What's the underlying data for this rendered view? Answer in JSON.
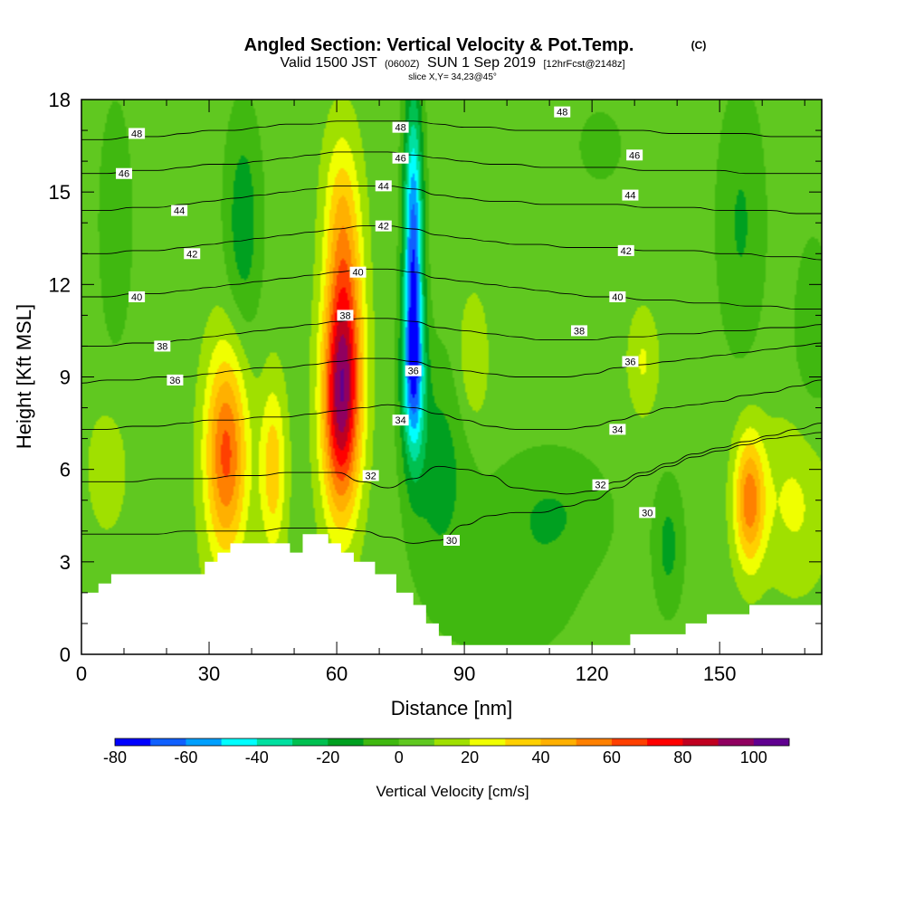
{
  "chart_data": {
    "type": "heatmap",
    "title": "Angled Section: Vertical Velocity & Pot.Temp.",
    "title_suffix": "(C)",
    "subtitle": {
      "part1": "Valid 1500 JST",
      "part2": "(0600Z)",
      "part3": "SUN 1 Sep 2019",
      "part4": "[12hrFcst@2148z]"
    },
    "slice_label": "slice X,Y= 34,23@45°",
    "xlabel": "Distance [nm]",
    "ylabel": "Height [Kft MSL]",
    "xlim": [
      0,
      174
    ],
    "ylim": [
      0,
      18
    ],
    "x_ticks": [
      0,
      30,
      60,
      90,
      120,
      150
    ],
    "y_ticks": [
      0,
      3,
      6,
      9,
      12,
      15,
      18
    ],
    "colorbar": {
      "label": "Vertical Velocity [cm/s]",
      "tick_labels": [
        -80,
        -60,
        -40,
        -20,
        0,
        20,
        40,
        60,
        80,
        100
      ],
      "bounds": [
        -80,
        110
      ],
      "step": 10,
      "colors": [
        "#0000ff",
        "#1060ff",
        "#00a0ff",
        "#00ffff",
        "#00e0a0",
        "#00c050",
        "#00a020",
        "#40b810",
        "#60c820",
        "#a0e000",
        "#f0ff00",
        "#ffd000",
        "#ffb000",
        "#ff8000",
        "#ff4000",
        "#ff0000",
        "#c00020",
        "#900060",
        "#600090"
      ]
    },
    "velocity_field": [
      {
        "x": 6,
        "z": 6.0,
        "value": 15,
        "sx": 3,
        "sz": 1.3
      },
      {
        "x": 34,
        "z": 6.5,
        "value": 58,
        "sx": 3.5,
        "sz": 2.4
      },
      {
        "x": 45,
        "z": 6.0,
        "value": 32,
        "sx": 2.2,
        "sz": 2.0
      },
      {
        "x": 61,
        "z": 8.0,
        "value": 75,
        "sx": 3.2,
        "sz": 2.6
      },
      {
        "x": 62,
        "z": 11.0,
        "value": 35,
        "sx": 3.0,
        "sz": 2.8
      },
      {
        "x": 61,
        "z": 14.5,
        "value": 20,
        "sx": 3.0,
        "sz": 2.0
      },
      {
        "x": 38,
        "z": 14.0,
        "value": -22,
        "sx": 3.0,
        "sz": 2.5
      },
      {
        "x": 8,
        "z": 14.0,
        "value": -12,
        "sx": 3.0,
        "sz": 3.0
      },
      {
        "x": 78,
        "z": 13.0,
        "value": -72,
        "sx": 1.6,
        "sz": 3.5
      },
      {
        "x": 78,
        "z": 9.0,
        "value": -42,
        "sx": 2.0,
        "sz": 1.8
      },
      {
        "x": 84,
        "z": 6.0,
        "value": -20,
        "sx": 5,
        "sz": 2.5
      },
      {
        "x": 110,
        "z": 4.5,
        "value": -16,
        "sx": 10,
        "sz": 1.5
      },
      {
        "x": 100,
        "z": 1.5,
        "value": -12,
        "sx": 10,
        "sz": 1.2
      },
      {
        "x": 92,
        "z": 9.5,
        "value": 16,
        "sx": 2.5,
        "sz": 1.5
      },
      {
        "x": 132,
        "z": 9.5,
        "value": 16,
        "sx": 2.5,
        "sz": 1.2
      },
      {
        "x": 157,
        "z": 5.0,
        "value": 50,
        "sx": 2.5,
        "sz": 1.5
      },
      {
        "x": 168,
        "z": 5.0,
        "value": 18,
        "sx": 6,
        "sz": 2.0
      },
      {
        "x": 155,
        "z": 14.0,
        "value": -16,
        "sx": 4,
        "sz": 3.0
      },
      {
        "x": 172,
        "z": 10.0,
        "value": -10,
        "sx": 4,
        "sz": 3.0
      },
      {
        "x": 122,
        "z": 16.5,
        "value": -6,
        "sx": 8,
        "sz": 1.8
      },
      {
        "x": 138,
        "z": 3.5,
        "value": -18,
        "sx": 2.5,
        "sz": 1.5
      },
      {
        "x": 20,
        "z": 1.5,
        "value": 4,
        "sx": 6,
        "sz": 1.5
      }
    ],
    "terrain": [
      [
        0,
        2.0
      ],
      [
        4,
        2.0
      ],
      [
        4,
        2.3
      ],
      [
        7,
        2.3
      ],
      [
        7,
        2.6
      ],
      [
        29,
        2.6
      ],
      [
        29,
        3.0
      ],
      [
        32,
        3.0
      ],
      [
        32,
        3.3
      ],
      [
        35,
        3.3
      ],
      [
        35,
        3.6
      ],
      [
        49,
        3.6
      ],
      [
        49,
        3.3
      ],
      [
        52,
        3.3
      ],
      [
        52,
        3.9
      ],
      [
        58,
        3.9
      ],
      [
        58,
        3.6
      ],
      [
        61,
        3.6
      ],
      [
        61,
        3.3
      ],
      [
        64,
        3.3
      ],
      [
        64,
        3.0
      ],
      [
        69,
        3.0
      ],
      [
        69,
        2.6
      ],
      [
        74,
        2.6
      ],
      [
        74,
        2.0
      ],
      [
        78,
        2.0
      ],
      [
        78,
        1.6
      ],
      [
        81,
        1.6
      ],
      [
        81,
        1.0
      ],
      [
        84,
        1.0
      ],
      [
        84,
        0.6
      ],
      [
        87,
        0.6
      ],
      [
        87,
        0.3
      ],
      [
        129,
        0.3
      ],
      [
        129,
        0.65
      ],
      [
        142,
        0.65
      ],
      [
        142,
        1.0
      ],
      [
        147,
        1.0
      ],
      [
        147,
        1.3
      ],
      [
        157,
        1.3
      ],
      [
        157,
        1.6
      ],
      [
        174,
        1.6
      ]
    ],
    "theta_levels": [
      {
        "value": 30,
        "z": [
          3.9,
          3.9,
          3.9,
          3.9,
          4.0,
          4.0,
          4.0,
          4.0,
          4.1,
          4.1,
          4.1,
          4.0,
          3.8,
          3.6,
          3.7,
          4.2,
          4.5,
          4.6,
          4.6,
          4.8,
          5.0,
          5.4,
          5.8,
          6.1,
          6.4,
          6.6,
          6.8,
          7.0,
          7.1,
          7.2
        ]
      },
      {
        "value": 32,
        "z": [
          5.6,
          5.6,
          5.6,
          5.7,
          5.7,
          5.7,
          5.8,
          5.8,
          5.9,
          5.9,
          5.9,
          5.6,
          5.4,
          5.7,
          6.1,
          6.0,
          5.8,
          5.4,
          5.3,
          5.2,
          5.3,
          5.6,
          5.9,
          6.2,
          6.5,
          6.7,
          6.9,
          7.1,
          7.3,
          7.5
        ]
      },
      {
        "value": 34,
        "z": [
          7.3,
          7.3,
          7.4,
          7.4,
          7.5,
          7.6,
          7.6,
          7.7,
          7.7,
          7.8,
          7.9,
          8.0,
          8.1,
          8.0,
          7.8,
          7.6,
          7.4,
          7.3,
          7.3,
          7.3,
          7.4,
          7.6,
          7.8,
          8.0,
          8.1,
          8.2,
          8.4,
          8.5,
          8.7,
          8.9
        ]
      },
      {
        "value": 36,
        "z": [
          8.8,
          8.9,
          8.9,
          9.0,
          9.0,
          9.1,
          9.2,
          9.3,
          9.3,
          9.4,
          9.5,
          9.6,
          9.6,
          9.5,
          9.3,
          9.2,
          9.1,
          9.0,
          9.0,
          9.0,
          9.1,
          9.3,
          9.4,
          9.5,
          9.6,
          9.7,
          9.8,
          9.9,
          10.0,
          10.1
        ]
      },
      {
        "value": 38,
        "z": [
          10.0,
          10.0,
          10.1,
          10.1,
          10.2,
          10.3,
          10.4,
          10.5,
          10.6,
          10.7,
          10.8,
          10.9,
          10.9,
          10.8,
          10.6,
          10.5,
          10.4,
          10.3,
          10.2,
          10.2,
          10.2,
          10.3,
          10.3,
          10.4,
          10.4,
          10.5,
          10.5,
          10.6,
          10.6,
          10.7
        ]
      },
      {
        "value": 40,
        "z": [
          11.6,
          11.6,
          11.7,
          11.7,
          11.8,
          11.9,
          12.0,
          12.1,
          12.2,
          12.3,
          12.4,
          12.5,
          12.5,
          12.4,
          12.2,
          12.1,
          12.0,
          11.9,
          11.8,
          11.7,
          11.6,
          11.6,
          11.5,
          11.5,
          11.4,
          11.4,
          11.3,
          11.3,
          11.2,
          11.2
        ]
      },
      {
        "value": 42,
        "z": [
          13.0,
          13.0,
          13.1,
          13.1,
          13.2,
          13.3,
          13.4,
          13.5,
          13.6,
          13.7,
          13.8,
          13.9,
          13.9,
          13.8,
          13.6,
          13.5,
          13.4,
          13.3,
          13.3,
          13.2,
          13.2,
          13.2,
          13.1,
          13.1,
          13.1,
          13.0,
          13.0,
          12.9,
          12.9,
          12.8
        ]
      },
      {
        "value": 44,
        "z": [
          14.4,
          14.4,
          14.5,
          14.5,
          14.6,
          14.7,
          14.8,
          14.9,
          15.0,
          15.1,
          15.2,
          15.2,
          15.2,
          15.1,
          14.9,
          14.8,
          14.7,
          14.7,
          14.6,
          14.6,
          14.6,
          14.6,
          14.5,
          14.5,
          14.5,
          14.4,
          14.4,
          14.4,
          14.3,
          14.3
        ]
      },
      {
        "value": 46,
        "z": [
          15.6,
          15.6,
          15.7,
          15.7,
          15.8,
          15.9,
          15.9,
          16.0,
          16.1,
          16.2,
          16.3,
          16.3,
          16.3,
          16.2,
          16.1,
          16.0,
          15.9,
          15.9,
          15.8,
          15.8,
          15.8,
          15.8,
          15.7,
          15.7,
          15.7,
          15.7,
          15.6,
          15.6,
          15.6,
          15.6
        ]
      },
      {
        "value": 48,
        "z": [
          16.7,
          16.7,
          16.8,
          16.8,
          16.9,
          17.0,
          17.0,
          17.1,
          17.2,
          17.2,
          17.3,
          17.3,
          17.3,
          17.3,
          17.2,
          17.1,
          17.1,
          17.0,
          17.0,
          17.0,
          17.0,
          17.0,
          17.0,
          16.9,
          16.9,
          16.9,
          16.9,
          16.8,
          16.8,
          16.8
        ]
      }
    ],
    "theta_x_stations": 30,
    "theta_labels": [
      {
        "text": "48",
        "x": 13,
        "z": 16.9
      },
      {
        "text": "46",
        "x": 10,
        "z": 15.6
      },
      {
        "text": "44",
        "x": 23,
        "z": 14.4
      },
      {
        "text": "42",
        "x": 26,
        "z": 13.0
      },
      {
        "text": "40",
        "x": 13,
        "z": 11.6
      },
      {
        "text": "38",
        "x": 19,
        "z": 10.0
      },
      {
        "text": "36",
        "x": 22,
        "z": 8.9
      },
      {
        "text": "48",
        "x": 75,
        "z": 17.1
      },
      {
        "text": "46",
        "x": 75,
        "z": 16.1
      },
      {
        "text": "44",
        "x": 71,
        "z": 15.2
      },
      {
        "text": "42",
        "x": 71,
        "z": 13.9
      },
      {
        "text": "40",
        "x": 65,
        "z": 12.4
      },
      {
        "text": "38",
        "x": 62,
        "z": 11.0
      },
      {
        "text": "36",
        "x": 78,
        "z": 9.2
      },
      {
        "text": "34",
        "x": 75,
        "z": 7.6
      },
      {
        "text": "32",
        "x": 68,
        "z": 5.8
      },
      {
        "text": "30",
        "x": 87,
        "z": 3.7
      },
      {
        "text": "48",
        "x": 113,
        "z": 17.6
      },
      {
        "text": "46",
        "x": 130,
        "z": 16.2
      },
      {
        "text": "44",
        "x": 129,
        "z": 14.9
      },
      {
        "text": "42",
        "x": 128,
        "z": 13.1
      },
      {
        "text": "40",
        "x": 126,
        "z": 11.6
      },
      {
        "text": "38",
        "x": 117,
        "z": 10.5
      },
      {
        "text": "36",
        "x": 129,
        "z": 9.5
      },
      {
        "text": "34",
        "x": 126,
        "z": 7.3
      },
      {
        "text": "32",
        "x": 122,
        "z": 5.5
      },
      {
        "text": "30",
        "x": 133,
        "z": 4.6
      }
    ]
  }
}
